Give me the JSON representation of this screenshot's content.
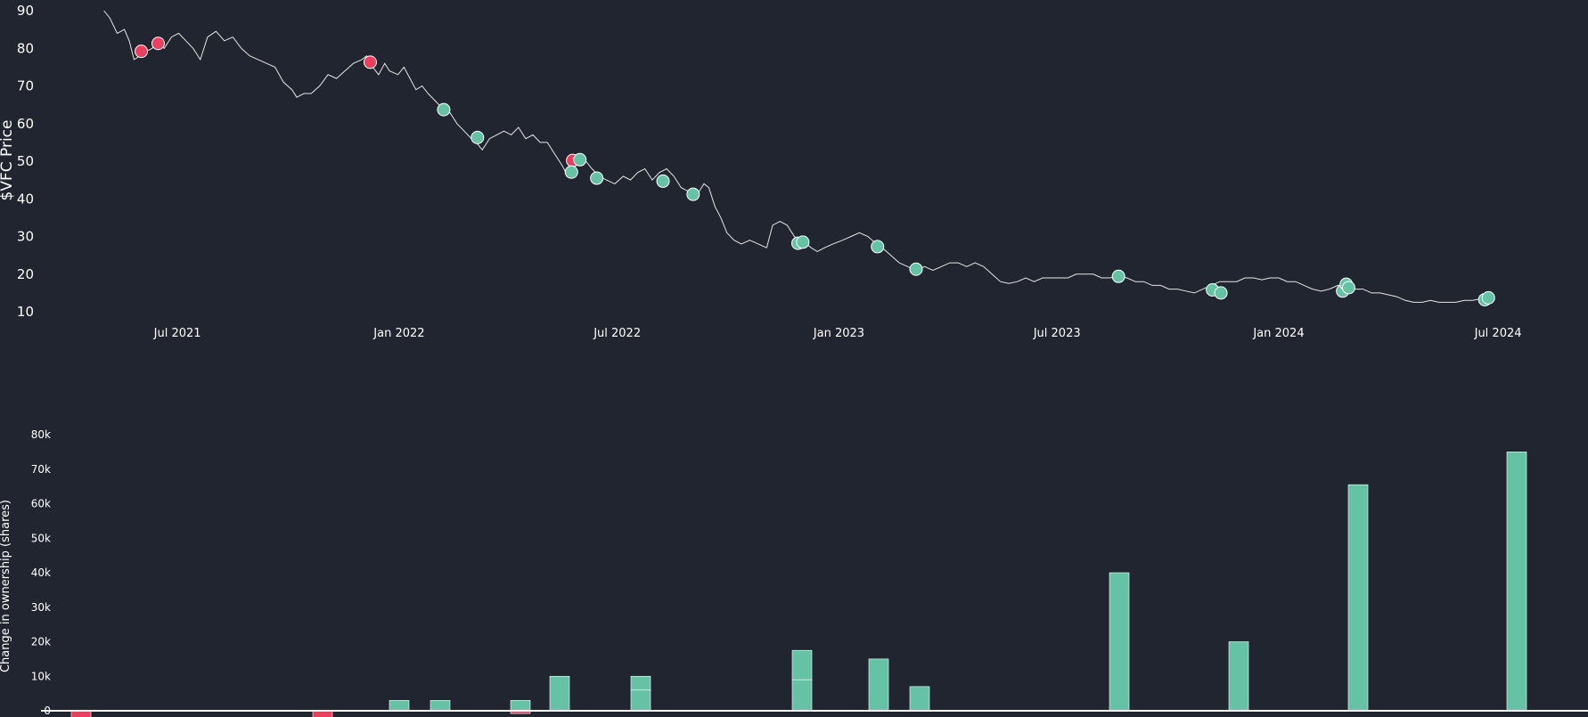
{
  "colors": {
    "background": "#20252f",
    "price_line": "#e6e6e6",
    "buy": "#66c2a5",
    "sell": "#e8405e",
    "text": "#ffffff",
    "baseline": "#ffffff"
  },
  "chart_data": [
    {
      "type": "line",
      "ylabel": "$VFC Price",
      "ylim": [
        8,
        91
      ],
      "xlim": [
        "2021-04-15",
        "2024-07-15"
      ],
      "y_ticks": [
        "10",
        "20",
        "30",
        "40",
        "50",
        "60",
        "70",
        "80",
        "90"
      ],
      "x_ticks": [
        {
          "date": "2021-07-01",
          "label": "Jul 2021"
        },
        {
          "date": "2022-01-01",
          "label": "Jan 2022"
        },
        {
          "date": "2022-07-01",
          "label": "Jul 2022"
        },
        {
          "date": "2023-01-01",
          "label": "Jan 2023"
        },
        {
          "date": "2023-07-01",
          "label": "Jul 2023"
        },
        {
          "date": "2024-01-01",
          "label": "Jan 2024"
        },
        {
          "date": "2024-07-01",
          "label": "Jul 2024"
        }
      ],
      "series": [
        {
          "points": [
            [
              "2021-05-01",
              90
            ],
            [
              "2021-05-06",
              88
            ],
            [
              "2021-05-12",
              84
            ],
            [
              "2021-05-18",
              85
            ],
            [
              "2021-05-22",
              82
            ],
            [
              "2021-05-26",
              77
            ],
            [
              "2021-05-31",
              78
            ],
            [
              "2021-06-04",
              79
            ],
            [
              "2021-06-10",
              80
            ],
            [
              "2021-06-15",
              81.5
            ],
            [
              "2021-06-20",
              80
            ],
            [
              "2021-06-26",
              83
            ],
            [
              "2021-07-02",
              84
            ],
            [
              "2021-07-08",
              82
            ],
            [
              "2021-07-14",
              80
            ],
            [
              "2021-07-20",
              77
            ],
            [
              "2021-07-26",
              83
            ],
            [
              "2021-08-02",
              84.5
            ],
            [
              "2021-08-09",
              82
            ],
            [
              "2021-08-16",
              83
            ],
            [
              "2021-08-23",
              80
            ],
            [
              "2021-08-30",
              78
            ],
            [
              "2021-09-06",
              77
            ],
            [
              "2021-09-13",
              76
            ],
            [
              "2021-09-20",
              75
            ],
            [
              "2021-09-27",
              71
            ],
            [
              "2021-10-04",
              69
            ],
            [
              "2021-10-08",
              67
            ],
            [
              "2021-10-14",
              68
            ],
            [
              "2021-10-20",
              68
            ],
            [
              "2021-10-27",
              70
            ],
            [
              "2021-11-03",
              73
            ],
            [
              "2021-11-10",
              72
            ],
            [
              "2021-11-17",
              74
            ],
            [
              "2021-11-24",
              76
            ],
            [
              "2021-12-01",
              77
            ],
            [
              "2021-12-05",
              78
            ],
            [
              "2021-12-10",
              75
            ],
            [
              "2021-12-15",
              73
            ],
            [
              "2021-12-20",
              76
            ],
            [
              "2021-12-24",
              74
            ],
            [
              "2021-12-31",
              73
            ],
            [
              "2022-01-05",
              75
            ],
            [
              "2022-01-10",
              72
            ],
            [
              "2022-01-15",
              69
            ],
            [
              "2022-01-20",
              70
            ],
            [
              "2022-01-25",
              68
            ],
            [
              "2022-01-31",
              66
            ],
            [
              "2022-02-06",
              64
            ],
            [
              "2022-02-12",
              63
            ],
            [
              "2022-02-18",
              60
            ],
            [
              "2022-02-24",
              58
            ],
            [
              "2022-03-02",
              56
            ],
            [
              "2022-03-06",
              55
            ],
            [
              "2022-03-11",
              53
            ],
            [
              "2022-03-17",
              56
            ],
            [
              "2022-03-23",
              57
            ],
            [
              "2022-03-29",
              58
            ],
            [
              "2022-04-04",
              57
            ],
            [
              "2022-04-10",
              59
            ],
            [
              "2022-04-16",
              56
            ],
            [
              "2022-04-22",
              57
            ],
            [
              "2022-04-28",
              55
            ],
            [
              "2022-05-04",
              55
            ],
            [
              "2022-05-10",
              52
            ],
            [
              "2022-05-16",
              49
            ],
            [
              "2022-05-21",
              46
            ],
            [
              "2022-05-25",
              47
            ],
            [
              "2022-05-28",
              50
            ],
            [
              "2022-06-01",
              51
            ],
            [
              "2022-06-05",
              50
            ],
            [
              "2022-06-10",
              48
            ],
            [
              "2022-06-16",
              46
            ],
            [
              "2022-06-22",
              45
            ],
            [
              "2022-06-29",
              44
            ],
            [
              "2022-07-06",
              46
            ],
            [
              "2022-07-12",
              45
            ],
            [
              "2022-07-18",
              47
            ],
            [
              "2022-07-24",
              48
            ],
            [
              "2022-07-30",
              45
            ],
            [
              "2022-08-05",
              47
            ],
            [
              "2022-08-11",
              48
            ],
            [
              "2022-08-17",
              46
            ],
            [
              "2022-08-23",
              43
            ],
            [
              "2022-08-29",
              42
            ],
            [
              "2022-09-05",
              41
            ],
            [
              "2022-09-11",
              44
            ],
            [
              "2022-09-15",
              43
            ],
            [
              "2022-09-20",
              38
            ],
            [
              "2022-09-25",
              35
            ],
            [
              "2022-09-30",
              31
            ],
            [
              "2022-10-06",
              29
            ],
            [
              "2022-10-12",
              28
            ],
            [
              "2022-10-19",
              29
            ],
            [
              "2022-10-26",
              28
            ],
            [
              "2022-11-02",
              27
            ],
            [
              "2022-11-07",
              33
            ],
            [
              "2022-11-13",
              34
            ],
            [
              "2022-11-19",
              33
            ],
            [
              "2022-11-25",
              30
            ],
            [
              "2022-12-01",
              28.5
            ],
            [
              "2022-12-05",
              28
            ],
            [
              "2022-12-09",
              27
            ],
            [
              "2022-12-14",
              26
            ],
            [
              "2022-12-20",
              27
            ],
            [
              "2022-12-27",
              28
            ],
            [
              "2023-01-04",
              29
            ],
            [
              "2023-01-11",
              30
            ],
            [
              "2023-01-18",
              31
            ],
            [
              "2023-01-25",
              30
            ],
            [
              "2023-02-01",
              28
            ],
            [
              "2023-02-06",
              27
            ],
            [
              "2023-02-13",
              25
            ],
            [
              "2023-02-20",
              23
            ],
            [
              "2023-02-27",
              22
            ],
            [
              "2023-03-06",
              21
            ],
            [
              "2023-03-13",
              22
            ],
            [
              "2023-03-20",
              21
            ],
            [
              "2023-03-27",
              22
            ],
            [
              "2023-04-03",
              23
            ],
            [
              "2023-04-10",
              23
            ],
            [
              "2023-04-17",
              22
            ],
            [
              "2023-04-24",
              23
            ],
            [
              "2023-05-01",
              22
            ],
            [
              "2023-05-08",
              20
            ],
            [
              "2023-05-15",
              18
            ],
            [
              "2023-05-22",
              17.5
            ],
            [
              "2023-05-29",
              18
            ],
            [
              "2023-06-05",
              19
            ],
            [
              "2023-06-12",
              18
            ],
            [
              "2023-06-19",
              19
            ],
            [
              "2023-06-26",
              19
            ],
            [
              "2023-07-03",
              19
            ],
            [
              "2023-07-10",
              19
            ],
            [
              "2023-07-17",
              20
            ],
            [
              "2023-07-24",
              20
            ],
            [
              "2023-07-31",
              20
            ],
            [
              "2023-08-07",
              19
            ],
            [
              "2023-08-14",
              19
            ],
            [
              "2023-08-21",
              19.5
            ],
            [
              "2023-08-28",
              19
            ],
            [
              "2023-09-04",
              18
            ],
            [
              "2023-09-11",
              18
            ],
            [
              "2023-09-18",
              17
            ],
            [
              "2023-09-25",
              17
            ],
            [
              "2023-10-02",
              16
            ],
            [
              "2023-10-09",
              16
            ],
            [
              "2023-10-16",
              15.5
            ],
            [
              "2023-10-23",
              15
            ],
            [
              "2023-10-30",
              16
            ],
            [
              "2023-11-06",
              17
            ],
            [
              "2023-11-13",
              18
            ],
            [
              "2023-11-20",
              18
            ],
            [
              "2023-11-27",
              18
            ],
            [
              "2023-12-04",
              19
            ],
            [
              "2023-12-11",
              19
            ],
            [
              "2023-12-18",
              18.5
            ],
            [
              "2023-12-25",
              19
            ],
            [
              "2024-01-01",
              19
            ],
            [
              "2024-01-08",
              18
            ],
            [
              "2024-01-15",
              18
            ],
            [
              "2024-01-22",
              17
            ],
            [
              "2024-01-29",
              16
            ],
            [
              "2024-02-05",
              15.5
            ],
            [
              "2024-02-12",
              16
            ],
            [
              "2024-02-19",
              17
            ],
            [
              "2024-02-26",
              17
            ],
            [
              "2024-03-04",
              16
            ],
            [
              "2024-03-11",
              16
            ],
            [
              "2024-03-18",
              15
            ],
            [
              "2024-03-25",
              15
            ],
            [
              "2024-04-01",
              14.5
            ],
            [
              "2024-04-08",
              14
            ],
            [
              "2024-04-15",
              13
            ],
            [
              "2024-04-22",
              12.5
            ],
            [
              "2024-04-29",
              12.5
            ],
            [
              "2024-05-06",
              13
            ],
            [
              "2024-05-13",
              12.5
            ],
            [
              "2024-05-20",
              12.5
            ],
            [
              "2024-05-27",
              12.5
            ],
            [
              "2024-06-03",
              13
            ],
            [
              "2024-06-10",
              13
            ],
            [
              "2024-06-17",
              13.5
            ],
            [
              "2024-06-24",
              14
            ]
          ]
        }
      ],
      "markers": [
        {
          "date": "2021-06-01",
          "price": 79.2,
          "kind": "sell"
        },
        {
          "date": "2021-06-15",
          "price": 81.3,
          "kind": "sell"
        },
        {
          "date": "2021-12-08",
          "price": 76.3,
          "kind": "sell"
        },
        {
          "date": "2022-02-07",
          "price": 63.7,
          "kind": "buy"
        },
        {
          "date": "2022-03-07",
          "price": 56.3,
          "kind": "buy"
        },
        {
          "date": "2022-05-25",
          "price": 50.2,
          "kind": "sell"
        },
        {
          "date": "2022-05-24",
          "price": 47.1,
          "kind": "buy"
        },
        {
          "date": "2022-05-31",
          "price": 50.4,
          "kind": "buy"
        },
        {
          "date": "2022-06-14",
          "price": 45.5,
          "kind": "buy"
        },
        {
          "date": "2022-08-08",
          "price": 44.7,
          "kind": "buy"
        },
        {
          "date": "2022-09-02",
          "price": 41.2,
          "kind": "buy"
        },
        {
          "date": "2022-11-28",
          "price": 28.2,
          "kind": "buy"
        },
        {
          "date": "2022-12-02",
          "price": 28.5,
          "kind": "buy"
        },
        {
          "date": "2023-02-02",
          "price": 27.3,
          "kind": "buy"
        },
        {
          "date": "2023-03-06",
          "price": 21.3,
          "kind": "buy"
        },
        {
          "date": "2023-08-21",
          "price": 19.4,
          "kind": "buy"
        },
        {
          "date": "2023-11-07",
          "price": 15.8,
          "kind": "buy"
        },
        {
          "date": "2023-11-14",
          "price": 15.0,
          "kind": "buy"
        },
        {
          "date": "2024-02-23",
          "price": 15.5,
          "kind": "buy"
        },
        {
          "date": "2024-02-26",
          "price": 17.3,
          "kind": "buy"
        },
        {
          "date": "2024-02-28",
          "price": 16.4,
          "kind": "buy"
        },
        {
          "date": "2024-06-20",
          "price": 13.2,
          "kind": "buy"
        },
        {
          "date": "2024-06-23",
          "price": 13.7,
          "kind": "buy"
        }
      ]
    },
    {
      "type": "bar",
      "ylabel": "Change in ownership (shares)",
      "ylim": [
        -1500,
        81500
      ],
      "y_ticks": [
        {
          "value": 0,
          "label": "0"
        },
        {
          "value": 10000,
          "label": "10k"
        },
        {
          "value": 20000,
          "label": "20k"
        },
        {
          "value": 30000,
          "label": "30k"
        },
        {
          "value": 40000,
          "label": "40k"
        },
        {
          "value": 50000,
          "label": "50k"
        },
        {
          "value": 60000,
          "label": "60k"
        },
        {
          "value": 70000,
          "label": "70k"
        },
        {
          "value": 80000,
          "label": "80k"
        }
      ],
      "bars": [
        {
          "segments": [
            -2500
          ]
        },
        {
          "segments": [
            -2500
          ]
        },
        {
          "segments": [
            3000
          ]
        },
        {
          "segments": [
            3000
          ]
        },
        {
          "segments": [
            3000,
            -800
          ]
        },
        {
          "segments": [
            10000
          ]
        },
        {
          "segments": [
            6000,
            4000
          ]
        },
        {
          "segments": [
            9000,
            8500
          ]
        },
        {
          "segments": [
            15000
          ]
        },
        {
          "segments": [
            7000
          ]
        },
        {
          "segments": [
            40000
          ]
        },
        {
          "segments": [
            20000
          ]
        },
        {
          "segments": [
            65500
          ]
        },
        {
          "segments": [
            75000
          ]
        }
      ]
    }
  ]
}
